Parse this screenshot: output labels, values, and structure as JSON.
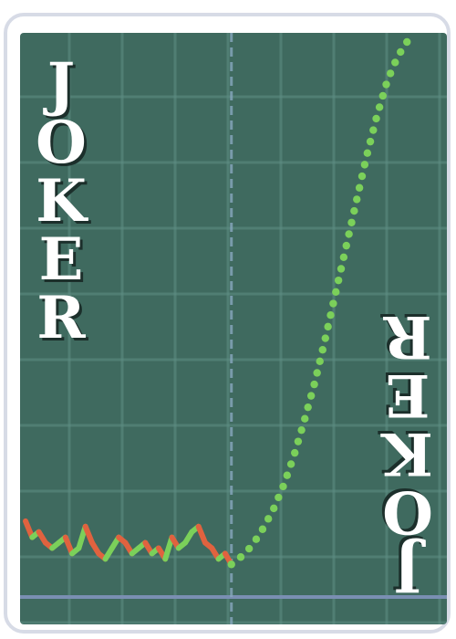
{
  "card": {
    "label": "JOKER",
    "letters": [
      "J",
      "O",
      "K",
      "E",
      "R"
    ]
  },
  "colors": {
    "card_background": "#ffffff",
    "card_border": "#d7dbe6",
    "face_background": "#3f6a5f",
    "grid_line": "#5f8f84",
    "axis_line": "#7a8fb2",
    "dashed_line": "#88a8bf",
    "up_color": "#7bd05a",
    "down_color": "#e0623f",
    "text_color": "#ffffff"
  },
  "chart_data": {
    "type": "line",
    "title": "",
    "xlabel": "",
    "ylabel": "",
    "xlim": [
      0,
      100
    ],
    "ylim": [
      0,
      100
    ],
    "grid": true,
    "series": [
      {
        "values_x": [
          0,
          1.6,
          3.2,
          4.8,
          6.4,
          8,
          9.6,
          11.2,
          12.8,
          14.4,
          16,
          17.6,
          19.2,
          20.8,
          22.4,
          24,
          25.6,
          27.2,
          28.8,
          30.4,
          32,
          33.6,
          35.2,
          36.8,
          38.4,
          40,
          41.6,
          43.2,
          44.8,
          46.4,
          48,
          49.5
        ],
        "values_y": [
          11,
          8,
          9,
          7,
          6,
          7,
          8,
          5,
          6,
          10,
          7,
          5,
          4,
          6,
          8,
          7,
          5,
          6,
          7,
          5,
          6,
          4,
          8,
          6,
          7,
          9,
          10,
          7,
          6,
          4,
          5,
          3
        ]
      },
      {
        "values_x": [
          49.5,
          52,
          54.5,
          57,
          59.5,
          62,
          64.5,
          67,
          69.5,
          72,
          74.5,
          77,
          79.5,
          82,
          84.5,
          87,
          89.5,
          92
        ],
        "values_y": [
          3,
          4.5,
          6.5,
          9.5,
          13,
          17.5,
          23,
          29.5,
          36.5,
          44.5,
          53,
          61.5,
          70,
          78.5,
          86,
          92.5,
          97,
          100
        ]
      }
    ]
  }
}
